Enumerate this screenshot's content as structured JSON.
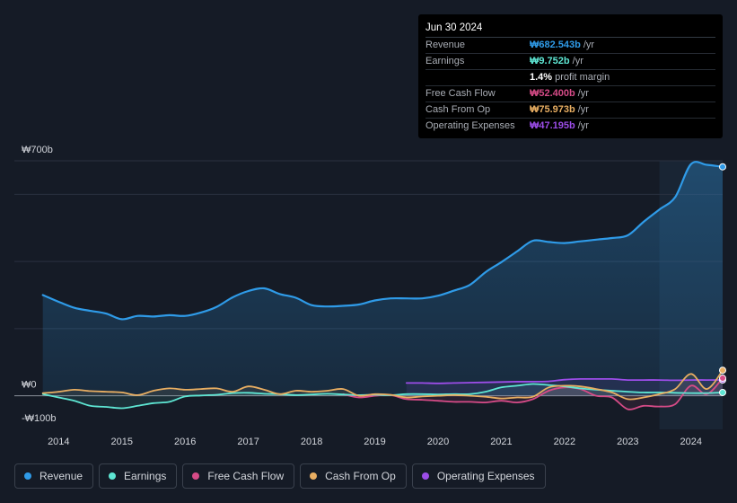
{
  "tooltip": {
    "date": "Jun 30 2024",
    "rows": [
      {
        "label": "Revenue",
        "value": "₩682.543b",
        "unit": "/yr"
      },
      {
        "label": "Earnings",
        "value": "₩9.752b",
        "unit": "/yr"
      },
      {
        "label": "",
        "value": "1.4%",
        "unit": "profit margin"
      },
      {
        "label": "Free Cash Flow",
        "value": "₩52.400b",
        "unit": "/yr"
      },
      {
        "label": "Cash From Op",
        "value": "₩75.973b",
        "unit": "/yr"
      },
      {
        "label": "Operating Expenses",
        "value": "₩47.195b",
        "unit": "/yr"
      }
    ]
  },
  "colors": {
    "background": "#151b26",
    "revenue": "#2f9be8",
    "earnings": "#5ee6d3",
    "free_cash_flow": "#d64b87",
    "cash_from_op": "#e8ae62",
    "operating_expenses": "#9c4de8"
  },
  "legend": [
    {
      "label": "Revenue",
      "color": "#2f9be8"
    },
    {
      "label": "Earnings",
      "color": "#5ee6d3"
    },
    {
      "label": "Free Cash Flow",
      "color": "#d64b87"
    },
    {
      "label": "Cash From Op",
      "color": "#e8ae62"
    },
    {
      "label": "Operating Expenses",
      "color": "#9c4de8"
    }
  ],
  "chart_data": {
    "type": "line",
    "title": "",
    "unit": "₩ billions (KRW)",
    "y_tick_labels": [
      "₩700b",
      "₩0",
      "-₩100b"
    ],
    "ylim": [
      -100,
      700
    ],
    "xlim": [
      2013.3,
      2024.5
    ],
    "x_tick_labels": [
      "2014",
      "2015",
      "2016",
      "2017",
      "2018",
      "2019",
      "2020",
      "2021",
      "2022",
      "2023",
      "2024"
    ],
    "highlight_from": 2023.5,
    "series": [
      {
        "name": "Revenue",
        "x": [
          2013.75,
          2014.0,
          2014.25,
          2014.5,
          2014.75,
          2015.0,
          2015.25,
          2015.5,
          2015.75,
          2016.0,
          2016.25,
          2016.5,
          2016.75,
          2017.0,
          2017.25,
          2017.5,
          2017.75,
          2018.0,
          2018.25,
          2018.5,
          2018.75,
          2019.0,
          2019.25,
          2019.5,
          2019.75,
          2020.0,
          2020.25,
          2020.5,
          2020.75,
          2021.0,
          2021.25,
          2021.5,
          2021.75,
          2022.0,
          2022.25,
          2022.5,
          2022.75,
          2023.0,
          2023.25,
          2023.5,
          2023.75,
          2024.0,
          2024.25,
          2024.5
        ],
        "values": [
          300,
          280,
          262,
          253,
          245,
          228,
          238,
          236,
          240,
          238,
          248,
          265,
          293,
          312,
          320,
          303,
          292,
          270,
          266,
          268,
          272,
          284,
          290,
          290,
          290,
          298,
          313,
          330,
          368,
          398,
          430,
          462,
          458,
          455,
          460,
          465,
          470,
          478,
          518,
          555,
          592,
          690,
          688,
          682
        ]
      },
      {
        "name": "Earnings",
        "x": [
          2013.75,
          2014.0,
          2014.25,
          2014.5,
          2014.75,
          2015.0,
          2015.25,
          2015.5,
          2015.75,
          2016.0,
          2016.25,
          2016.5,
          2016.75,
          2017.0,
          2017.25,
          2017.5,
          2017.75,
          2018.0,
          2018.25,
          2018.5,
          2018.75,
          2019.0,
          2019.25,
          2019.5,
          2019.75,
          2020.0,
          2020.25,
          2020.5,
          2020.75,
          2021.0,
          2021.25,
          2021.5,
          2021.75,
          2022.0,
          2022.25,
          2022.5,
          2022.75,
          2023.0,
          2023.25,
          2023.5,
          2023.75,
          2024.0,
          2024.25,
          2024.5
        ],
        "values": [
          5,
          -5,
          -15,
          -30,
          -33,
          -37,
          -30,
          -22,
          -18,
          -2,
          1,
          3,
          8,
          9,
          6,
          5,
          2,
          4,
          6,
          4,
          2,
          3,
          2,
          5,
          5,
          4,
          5,
          5,
          12,
          25,
          30,
          35,
          32,
          28,
          22,
          18,
          15,
          12,
          10,
          10,
          9,
          8,
          8,
          9.752
        ]
      },
      {
        "name": "Free Cash Flow",
        "x": [
          2018.5,
          2018.75,
          2019.0,
          2019.25,
          2019.5,
          2019.75,
          2020.0,
          2020.25,
          2020.5,
          2020.75,
          2021.0,
          2021.25,
          2021.5,
          2021.75,
          2022.0,
          2022.25,
          2022.5,
          2022.75,
          2023.0,
          2023.25,
          2023.5,
          2023.75,
          2024.0,
          2024.25,
          2024.5
        ],
        "values": [
          5,
          -5,
          0,
          2,
          -10,
          -12,
          -15,
          -18,
          -18,
          -20,
          -15,
          -20,
          -10,
          15,
          25,
          20,
          0,
          -5,
          -40,
          -30,
          -32,
          -25,
          30,
          5,
          52.4
        ]
      },
      {
        "name": "Cash From Op",
        "x": [
          2013.75,
          2014.0,
          2014.25,
          2014.5,
          2014.75,
          2015.0,
          2015.25,
          2015.5,
          2015.75,
          2016.0,
          2016.25,
          2016.5,
          2016.75,
          2017.0,
          2017.25,
          2017.5,
          2017.75,
          2018.0,
          2018.25,
          2018.5,
          2018.75,
          2019.0,
          2019.25,
          2019.5,
          2019.75,
          2020.0,
          2020.25,
          2020.5,
          2020.75,
          2021.0,
          2021.25,
          2021.5,
          2021.75,
          2022.0,
          2022.25,
          2022.5,
          2022.75,
          2023.0,
          2023.25,
          2023.5,
          2023.75,
          2024.0,
          2024.25,
          2024.5
        ],
        "values": [
          8,
          12,
          18,
          14,
          12,
          10,
          2,
          15,
          22,
          18,
          20,
          22,
          12,
          28,
          18,
          5,
          15,
          12,
          15,
          20,
          0,
          5,
          3,
          -5,
          -2,
          0,
          2,
          0,
          -3,
          -8,
          -5,
          -3,
          25,
          30,
          28,
          20,
          10,
          -10,
          -5,
          5,
          20,
          65,
          20,
          75.973
        ]
      },
      {
        "name": "Operating Expenses",
        "x": [
          2019.5,
          2019.75,
          2020.0,
          2020.25,
          2020.5,
          2020.75,
          2021.0,
          2021.25,
          2021.5,
          2021.75,
          2022.0,
          2022.25,
          2022.5,
          2022.75,
          2023.0,
          2023.25,
          2023.5,
          2023.75,
          2024.0,
          2024.25,
          2024.5
        ],
        "values": [
          38,
          38,
          37,
          38,
          39,
          40,
          41,
          42,
          42,
          43,
          48,
          50,
          50,
          50,
          47,
          47,
          47,
          46,
          47,
          47,
          47.195
        ]
      }
    ]
  }
}
